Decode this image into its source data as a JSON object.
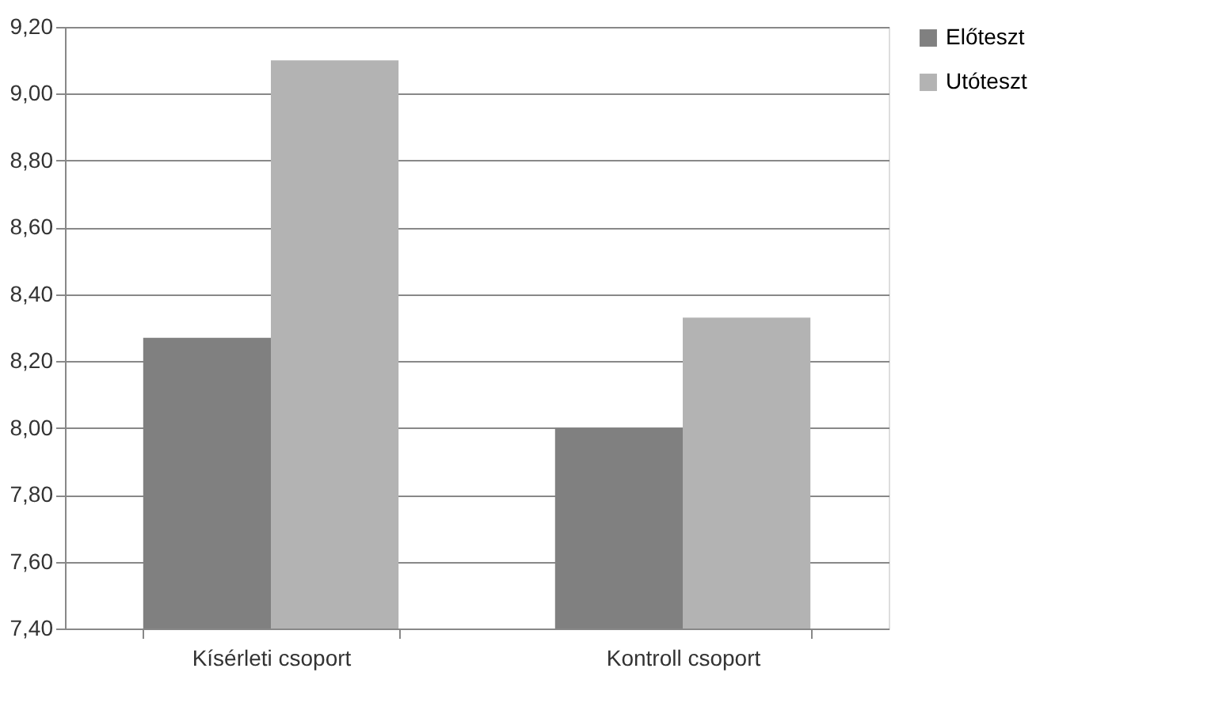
{
  "chart_data": {
    "type": "bar",
    "categories": [
      "Kísérleti csoport",
      "Kontroll csoport"
    ],
    "series": [
      {
        "name": "Előteszt",
        "color": "#808080",
        "values": [
          8.27,
          8.0
        ]
      },
      {
        "name": "Utóteszt",
        "color": "#b3b3b3",
        "values": [
          9.1,
          8.33
        ]
      }
    ],
    "ylim": [
      7.4,
      9.2
    ],
    "yticks": [
      {
        "value": 7.4,
        "label": "7,40"
      },
      {
        "value": 7.6,
        "label": "7,60"
      },
      {
        "value": 7.8,
        "label": "7,80"
      },
      {
        "value": 8.0,
        "label": "8,00"
      },
      {
        "value": 8.2,
        "label": "8,20"
      },
      {
        "value": 8.4,
        "label": "8,40"
      },
      {
        "value": 8.6,
        "label": "8,60"
      },
      {
        "value": 8.8,
        "label": "8,80"
      },
      {
        "value": 9.0,
        "label": "9,00"
      },
      {
        "value": 9.2,
        "label": "9,20"
      }
    ],
    "grid": "y",
    "legend": "right"
  }
}
